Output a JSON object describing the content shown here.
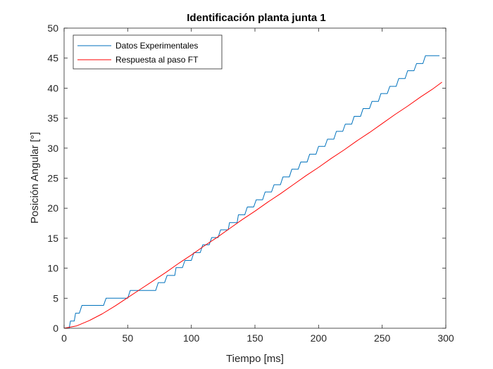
{
  "chart_data": {
    "type": "line",
    "title": "Identificación planta junta 1",
    "xlabel": "Tiempo [ms]",
    "ylabel": "Posición Angular [°]",
    "xlim": [
      0,
      300
    ],
    "ylim": [
      0,
      50
    ],
    "xticks": [
      "0",
      "50",
      "100",
      "150",
      "200",
      "250",
      "300"
    ],
    "yticks": [
      "0",
      "5",
      "10",
      "15",
      "20",
      "25",
      "30",
      "35",
      "40",
      "45",
      "50"
    ],
    "grid": false,
    "legend_position": "top-left",
    "series": [
      {
        "name": "Datos Experimentales",
        "color": "#0072BD",
        "step": true,
        "x": [
          0,
          4,
          5,
          8,
          9,
          12,
          14,
          31,
          33,
          50,
          52,
          72,
          74,
          79,
          81,
          87,
          88,
          93,
          95,
          100,
          102,
          107,
          109,
          114,
          116,
          121,
          123,
          129,
          130,
          136,
          137,
          142,
          144,
          149,
          151,
          156,
          158,
          163,
          165,
          170,
          172,
          177,
          179,
          184,
          186,
          191,
          193,
          198,
          200,
          205,
          207,
          212,
          214,
          219,
          221,
          226,
          228,
          233,
          235,
          240,
          242,
          247,
          249,
          254,
          256,
          261,
          263,
          268,
          270,
          275,
          277,
          282,
          284,
          289,
          291,
          295
        ],
        "y": [
          0,
          0,
          1.2,
          1.2,
          2.5,
          2.5,
          3.8,
          3.8,
          5.0,
          5.0,
          6.3,
          6.3,
          7.6,
          7.6,
          8.8,
          8.8,
          10.1,
          10.1,
          11.3,
          11.3,
          12.6,
          12.6,
          13.9,
          13.9,
          15.1,
          15.1,
          16.4,
          16.4,
          17.6,
          17.6,
          18.9,
          18.9,
          20.2,
          20.2,
          21.4,
          21.4,
          22.7,
          22.7,
          23.9,
          23.9,
          25.2,
          25.2,
          26.5,
          26.5,
          27.7,
          27.7,
          29.0,
          29.0,
          30.3,
          30.3,
          31.5,
          31.5,
          32.8,
          32.8,
          34.0,
          34.0,
          35.3,
          35.3,
          36.6,
          36.6,
          37.8,
          37.8,
          39.1,
          39.1,
          40.3,
          40.3,
          41.6,
          41.6,
          42.9,
          42.9,
          44.1,
          44.1,
          45.4,
          45.4,
          45.4,
          45.4
        ]
      },
      {
        "name": "Respuesta al paso FT",
        "color": "#FF0000",
        "step": false,
        "x": [
          0,
          10,
          20,
          30,
          40,
          50,
          60,
          70,
          80,
          90,
          100,
          110,
          120,
          130,
          140,
          150,
          160,
          170,
          180,
          190,
          200,
          210,
          220,
          230,
          240,
          250,
          260,
          270,
          280,
          290,
          297
        ],
        "y": [
          0,
          0.4,
          1.3,
          2.4,
          3.7,
          5.1,
          6.5,
          7.9,
          9.3,
          10.8,
          12.2,
          13.7,
          15.1,
          16.6,
          18.1,
          19.5,
          21.0,
          22.4,
          23.9,
          25.4,
          26.8,
          28.3,
          29.7,
          31.2,
          32.6,
          34.1,
          35.6,
          37.0,
          38.5,
          39.9,
          41.0
        ]
      }
    ]
  }
}
